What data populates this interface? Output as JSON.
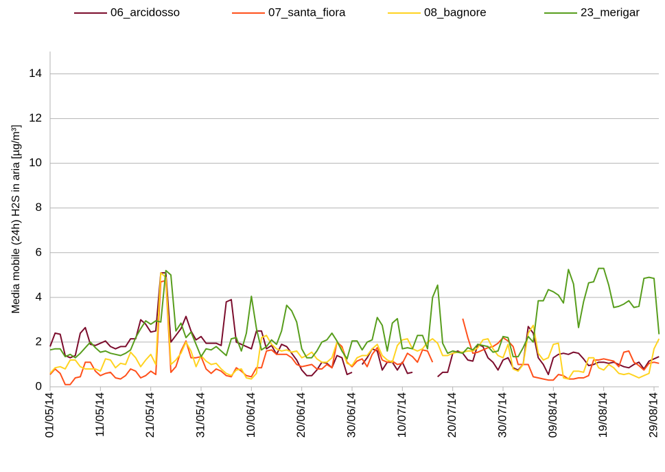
{
  "chart_data": {
    "type": "line",
    "y_label": "Media mobile (24h) H2S in aria [µg/m³]",
    "categories": [
      "01/05/14",
      null,
      null,
      null,
      null,
      null,
      null,
      null,
      null,
      null,
      "11/05/14",
      null,
      null,
      null,
      null,
      null,
      null,
      null,
      null,
      null,
      "21/05/14",
      null,
      null,
      null,
      null,
      null,
      null,
      null,
      null,
      null,
      "31/05/14",
      null,
      null,
      null,
      null,
      null,
      null,
      null,
      null,
      null,
      "10/06/14",
      null,
      null,
      null,
      null,
      null,
      null,
      null,
      null,
      null,
      "20/06/14",
      null,
      null,
      null,
      null,
      null,
      null,
      null,
      null,
      null,
      "30/06/14",
      null,
      null,
      null,
      null,
      null,
      null,
      null,
      null,
      null,
      "10/07/14",
      null,
      null,
      null,
      null,
      null,
      null,
      null,
      null,
      null,
      "20/07/14",
      null,
      null,
      null,
      null,
      null,
      null,
      null,
      null,
      null,
      "30/07/14",
      null,
      null,
      null,
      null,
      null,
      null,
      null,
      null,
      null,
      "09/08/14",
      null,
      null,
      null,
      null,
      null,
      null,
      null,
      null,
      null,
      "19/08/14",
      null,
      null,
      null,
      null,
      null,
      null,
      null,
      null,
      null,
      "29/08/14",
      null
    ],
    "ylim": [
      0,
      15
    ],
    "yticks": [
      0,
      2,
      4,
      6,
      8,
      10,
      12,
      14
    ],
    "grid": true,
    "legend": "top",
    "series": [
      {
        "name": "06_arcidosso",
        "color": "#7b0c2c",
        "values": [
          1.8,
          2.4,
          2.35,
          1.4,
          1.3,
          1.4,
          2.4,
          2.65,
          1.9,
          1.85,
          1.95,
          2.05,
          1.8,
          1.7,
          1.8,
          1.8,
          2.15,
          2.15,
          3.0,
          2.8,
          2.45,
          2.5,
          5.1,
          5.1,
          2.0,
          2.3,
          2.6,
          3.15,
          2.5,
          2.1,
          2.25,
          1.95,
          1.95,
          1.95,
          1.85,
          3.8,
          3.9,
          2.0,
          1.9,
          1.8,
          1.7,
          2.5,
          2.5,
          1.7,
          1.85,
          1.45,
          1.9,
          1.8,
          1.5,
          1.2,
          0.75,
          0.5,
          0.5,
          0.75,
          1.1,
          1.05,
          0.85,
          1.4,
          1.3,
          0.55,
          0.65,
          null,
          1.0,
          1.3,
          1.7,
          1.6,
          0.75,
          1.1,
          1.1,
          0.75,
          1.1,
          0.6,
          0.65,
          null,
          null,
          null,
          null,
          0.45,
          0.65,
          0.65,
          1.5,
          1.6,
          1.5,
          1.2,
          1.15,
          1.9,
          1.8,
          1.3,
          1.1,
          0.75,
          1.2,
          1.3,
          0.85,
          0.75,
          1.0,
          2.7,
          2.4,
          1.3,
          1.0,
          0.55,
          1.3,
          1.45,
          1.5,
          1.45,
          1.55,
          1.5,
          1.25,
          0.95,
          1.0,
          1.1,
          1.1,
          1.05,
          1.1,
          1.0,
          0.9,
          0.85,
          1.0,
          1.1,
          0.8,
          1.15,
          1.25,
          1.35
        ]
      },
      {
        "name": "07_santa_fiora",
        "color": "#ff4f1a",
        "values": [
          0.55,
          0.8,
          0.6,
          0.1,
          0.1,
          0.4,
          0.45,
          1.1,
          1.1,
          0.7,
          0.5,
          0.6,
          0.65,
          0.4,
          0.35,
          0.5,
          0.8,
          0.7,
          0.4,
          0.5,
          0.7,
          0.55,
          4.7,
          4.75,
          0.65,
          0.9,
          1.6,
          2.05,
          1.3,
          1.3,
          1.35,
          0.8,
          0.6,
          0.8,
          0.7,
          0.5,
          0.45,
          0.85,
          0.7,
          0.5,
          0.45,
          0.85,
          0.85,
          1.6,
          1.65,
          1.45,
          1.45,
          1.45,
          1.3,
          1.0,
          0.9,
          0.95,
          1.0,
          0.8,
          0.8,
          1.0,
          0.85,
          2.0,
          1.8,
          1.1,
          0.9,
          1.15,
          1.25,
          0.9,
          1.45,
          1.75,
          1.2,
          1.1,
          1.15,
          1.0,
          1.05,
          1.5,
          1.35,
          1.1,
          1.65,
          1.6,
          1.1,
          null,
          null,
          null,
          null,
          null,
          3.05,
          2.2,
          1.5,
          1.55,
          1.65,
          1.75,
          1.8,
          1.95,
          2.2,
          2.05,
          1.8,
          1.0,
          1.0,
          1.0,
          0.45,
          0.4,
          0.35,
          0.3,
          0.3,
          0.55,
          0.5,
          0.35,
          0.35,
          0.4,
          0.4,
          0.5,
          1.2,
          1.2,
          1.25,
          1.2,
          1.15,
          0.9,
          1.55,
          1.6,
          1.1,
          0.95,
          0.75,
          1.05,
          1.1,
          1.05
        ]
      },
      {
        "name": "08_bagnore",
        "color": "#ffd320",
        "values": [
          0.6,
          0.85,
          0.9,
          0.8,
          1.2,
          1.2,
          0.9,
          0.8,
          0.8,
          0.8,
          0.7,
          1.25,
          1.2,
          0.85,
          1.05,
          1.0,
          1.55,
          1.3,
          0.9,
          1.2,
          1.45,
          1.0,
          5.1,
          4.9,
          1.0,
          1.2,
          1.5,
          2.0,
          1.6,
          0.9,
          1.4,
          1.15,
          1.0,
          1.05,
          0.8,
          0.6,
          0.5,
          0.75,
          0.8,
          0.4,
          0.35,
          0.6,
          2.2,
          2.3,
          1.9,
          1.7,
          1.6,
          1.65,
          1.55,
          1.6,
          1.3,
          1.4,
          1.55,
          1.25,
          1.1,
          1.1,
          1.3,
          2.0,
          1.7,
          1.05,
          0.95,
          1.3,
          1.4,
          1.4,
          1.7,
          1.9,
          1.4,
          1.2,
          1.1,
          1.85,
          2.1,
          2.15,
          1.7,
          1.6,
          1.7,
          2.0,
          2.15,
          1.95,
          1.4,
          1.4,
          1.5,
          1.55,
          1.55,
          1.6,
          1.6,
          1.75,
          2.1,
          2.15,
          1.7,
          1.4,
          1.3,
          1.9,
          0.8,
          0.7,
          1.0,
          2.4,
          2.75,
          1.5,
          1.2,
          1.3,
          1.9,
          1.95,
          0.4,
          0.35,
          0.7,
          0.7,
          0.65,
          1.3,
          1.3,
          0.85,
          0.75,
          1.0,
          0.85,
          0.6,
          0.55,
          0.6,
          0.5,
          0.4,
          0.5,
          0.6,
          1.7,
          2.15
        ]
      },
      {
        "name": "23_merigar",
        "color": "#579d1c",
        "values": [
          1.65,
          1.7,
          1.7,
          1.35,
          1.45,
          1.3,
          1.5,
          1.75,
          2.0,
          1.75,
          1.55,
          1.6,
          1.5,
          1.45,
          1.4,
          1.5,
          1.65,
          2.2,
          2.6,
          2.95,
          2.8,
          2.95,
          2.9,
          5.2,
          5.0,
          2.5,
          2.85,
          2.2,
          2.45,
          1.9,
          1.35,
          1.7,
          1.65,
          1.8,
          1.6,
          1.4,
          2.15,
          2.2,
          1.6,
          2.4,
          4.05,
          2.6,
          1.65,
          1.8,
          2.1,
          1.9,
          2.5,
          3.65,
          3.4,
          2.9,
          1.7,
          1.3,
          1.3,
          1.6,
          2.0,
          2.1,
          2.4,
          2.05,
          1.6,
          1.25,
          2.05,
          2.05,
          1.65,
          2.0,
          2.1,
          3.1,
          2.75,
          1.6,
          2.85,
          3.05,
          1.7,
          1.75,
          1.7,
          2.3,
          2.3,
          1.7,
          4.0,
          4.55,
          1.95,
          1.5,
          1.6,
          1.55,
          1.5,
          1.75,
          1.65,
          1.9,
          1.85,
          1.8,
          1.55,
          1.6,
          2.25,
          2.2,
          1.35,
          1.35,
          1.75,
          2.25,
          2.0,
          3.85,
          3.85,
          4.35,
          4.25,
          4.1,
          3.75,
          5.25,
          4.6,
          2.65,
          3.8,
          4.65,
          4.7,
          5.3,
          5.3,
          4.55,
          3.55,
          3.6,
          3.7,
          3.85,
          3.55,
          3.6,
          4.85,
          4.9,
          4.85,
          2.35
        ]
      }
    ]
  }
}
